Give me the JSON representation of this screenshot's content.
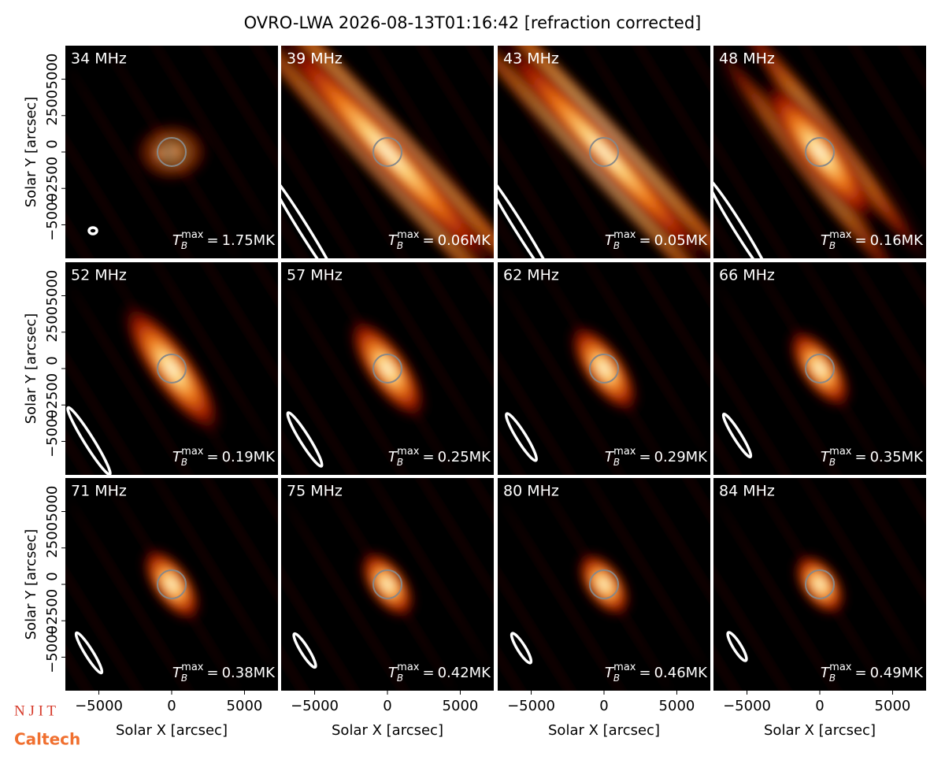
{
  "title": "OVRO-LWA 2026-08-13T01:16:42 [refraction corrected]",
  "axes": {
    "xlabel": "Solar X [arcsec]",
    "ylabel": "Solar Y [arcsec]",
    "xlim": [
      -7300,
      7300
    ],
    "ylim": [
      -7300,
      7300
    ],
    "xticks": [
      {
        "value": -5000,
        "label": "−5000"
      },
      0,
      5000
    ],
    "yticks": [
      {
        "value": -5000,
        "label": "−5000"
      },
      {
        "value": -2500,
        "label": "−2500"
      },
      0,
      2500,
      5000
    ]
  },
  "tb_symbol": "T",
  "tb_sub": "B",
  "tb_sup": "max",
  "equals": "=",
  "logos": [
    "N J I T",
    "Caltech"
  ],
  "chart_data": [
    {
      "type": "image",
      "title": "34 MHz",
      "tb_max": "1.75MK"
    },
    {
      "type": "image",
      "title": "39 MHz",
      "tb_max": "0.06MK"
    },
    {
      "type": "image",
      "title": "43 MHz",
      "tb_max": "0.05MK"
    },
    {
      "type": "image",
      "title": "48 MHz",
      "tb_max": "0.16MK"
    },
    {
      "type": "image",
      "title": "52 MHz",
      "tb_max": "0.19MK"
    },
    {
      "type": "image",
      "title": "57 MHz",
      "tb_max": "0.25MK"
    },
    {
      "type": "image",
      "title": "62 MHz",
      "tb_max": "0.29MK"
    },
    {
      "type": "image",
      "title": "66 MHz",
      "tb_max": "0.35MK"
    },
    {
      "type": "image",
      "title": "71 MHz",
      "tb_max": "0.38MK"
    },
    {
      "type": "image",
      "title": "75 MHz",
      "tb_max": "0.42MK"
    },
    {
      "type": "image",
      "title": "80 MHz",
      "tb_max": "0.46MK"
    },
    {
      "type": "image",
      "title": "84 MHz",
      "tb_max": "0.49MK"
    }
  ]
}
